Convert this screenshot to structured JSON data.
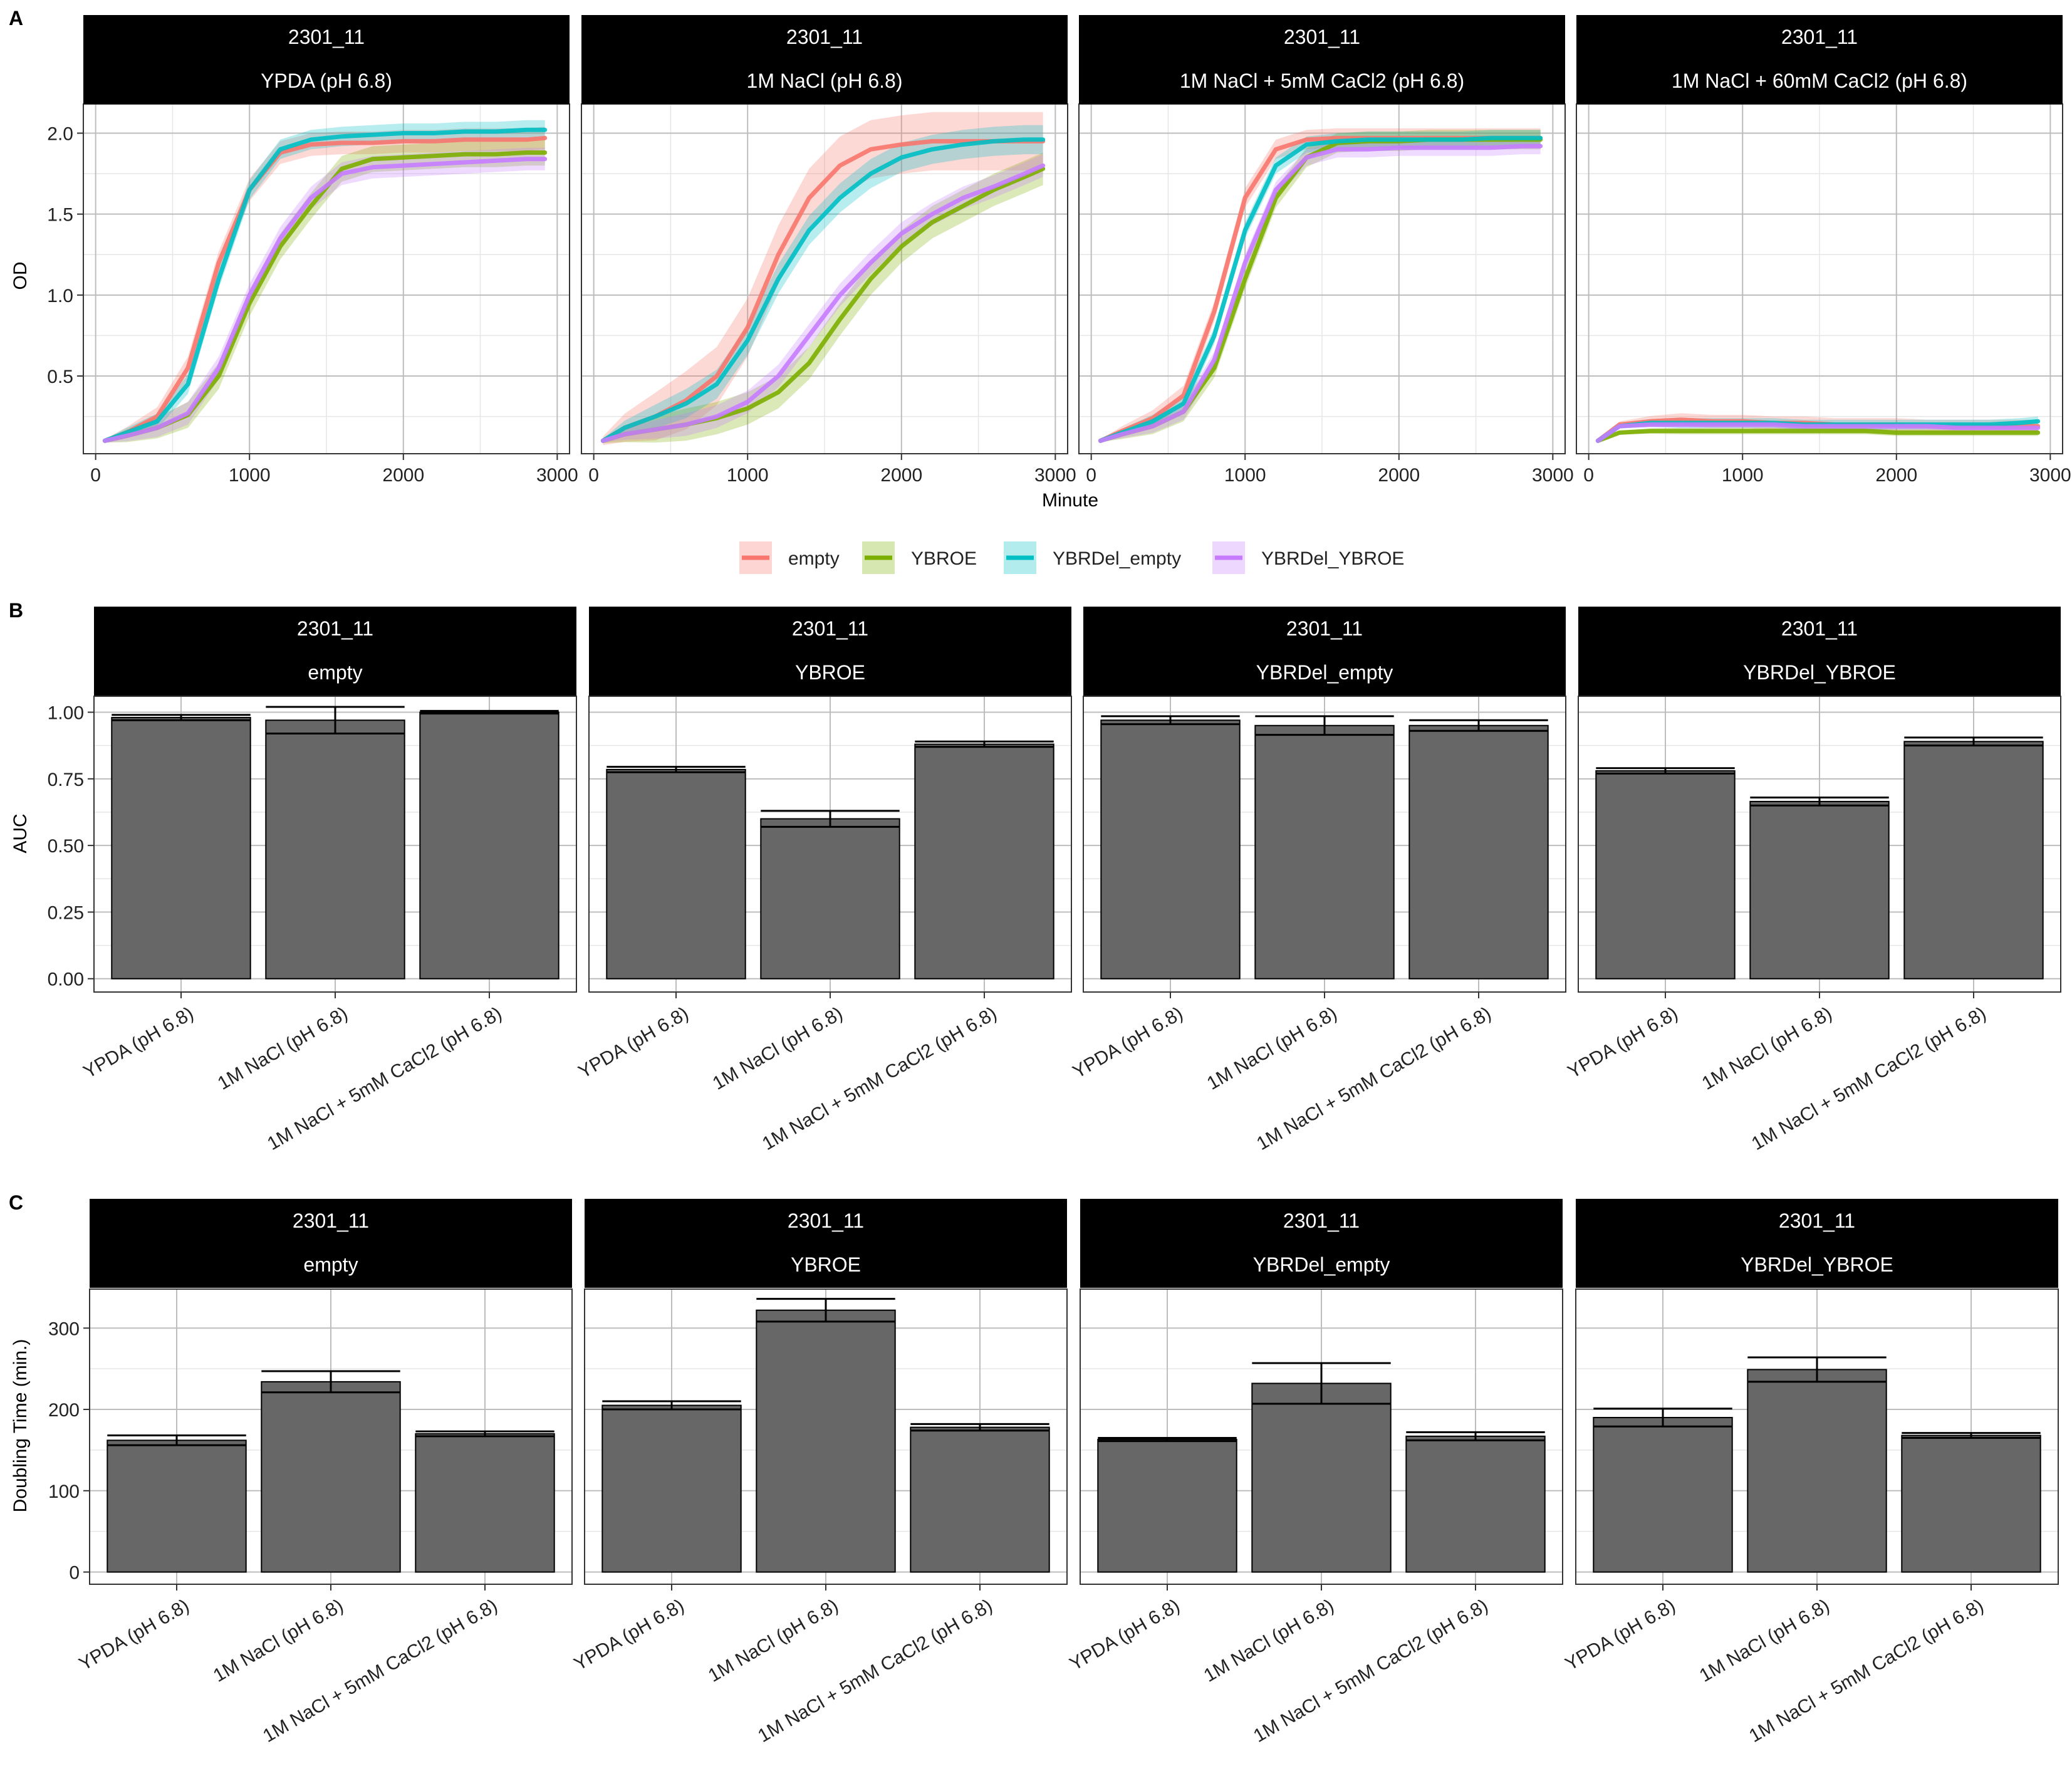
{
  "panel_labels": [
    "A",
    "B",
    "C"
  ],
  "colors": {
    "empty": "#F8766D",
    "YBROE": "#7CAE00",
    "YBRDel_empty": "#00BFC4",
    "YBRDel_YBROE": "#C77CFF",
    "bar_fill": "#676767",
    "strip_bg": "#000000",
    "strip_text": "#ffffff",
    "grid_major": "#bdbdbd",
    "grid_minor": "#e6e6e6"
  },
  "legend": {
    "position": "bottom-center",
    "items": [
      {
        "label": "empty",
        "color": "#F8766D"
      },
      {
        "label": "YBROE",
        "color": "#7CAE00"
      },
      {
        "label": "YBRDel_empty",
        "color": "#00BFC4"
      },
      {
        "label": "YBRDel_YBROE",
        "color": "#C77CFF"
      }
    ]
  },
  "chart_data": [
    {
      "panel": "A",
      "type": "line",
      "xlabel": "Minute",
      "ylabel": "OD",
      "xlim": [
        -80,
        3080
      ],
      "ylim": [
        0.02,
        2.18
      ],
      "x_ticks": [
        0,
        1000,
        2000,
        3000
      ],
      "y_ticks": [
        0.5,
        1.0,
        1.5,
        2.0
      ],
      "y_tick_labels": [
        "0.5",
        "1.0",
        "1.5",
        "2.0"
      ],
      "grid": true,
      "x": [
        60,
        200,
        400,
        600,
        800,
        1000,
        1200,
        1400,
        1600,
        1800,
        2000,
        2200,
        2400,
        2600,
        2800,
        2920
      ],
      "facets": [
        {
          "strip": [
            "2301_11",
            "YPDA (pH 6.8)"
          ],
          "series": [
            {
              "name": "empty",
              "values": [
                0.1,
                0.15,
                0.25,
                0.55,
                1.2,
                1.65,
                1.88,
                1.93,
                1.94,
                1.94,
                1.95,
                1.95,
                1.96,
                1.96,
                1.96,
                1.97
              ],
              "band": 0.07
            },
            {
              "name": "YBROE",
              "values": [
                0.1,
                0.13,
                0.18,
                0.26,
                0.5,
                0.95,
                1.3,
                1.55,
                1.78,
                1.84,
                1.85,
                1.86,
                1.87,
                1.87,
                1.88,
                1.88
              ],
              "band": 0.08
            },
            {
              "name": "YBRDel_empty",
              "values": [
                0.1,
                0.15,
                0.22,
                0.45,
                1.1,
                1.65,
                1.9,
                1.96,
                1.98,
                1.99,
                2.0,
                2.0,
                2.01,
                2.01,
                2.02,
                2.02
              ],
              "band": 0.06
            },
            {
              "name": "YBRDel_YBROE",
              "values": [
                0.1,
                0.13,
                0.18,
                0.27,
                0.55,
                1.0,
                1.35,
                1.6,
                1.75,
                1.79,
                1.8,
                1.81,
                1.82,
                1.83,
                1.84,
                1.84
              ],
              "band": 0.07
            }
          ]
        },
        {
          "strip": [
            "2301_11",
            "1M NaCl (pH 6.8)"
          ],
          "series": [
            {
              "name": "empty",
              "values": [
                0.1,
                0.18,
                0.25,
                0.35,
                0.5,
                0.8,
                1.25,
                1.6,
                1.8,
                1.9,
                1.93,
                1.95,
                1.95,
                1.95,
                1.95,
                1.95
              ],
              "band": 0.18
            },
            {
              "name": "YBROE",
              "values": [
                0.1,
                0.14,
                0.17,
                0.2,
                0.24,
                0.3,
                0.4,
                0.58,
                0.85,
                1.1,
                1.3,
                1.45,
                1.55,
                1.65,
                1.73,
                1.78
              ],
              "band": 0.1
            },
            {
              "name": "YBRDel_empty",
              "values": [
                0.1,
                0.18,
                0.25,
                0.33,
                0.45,
                0.72,
                1.1,
                1.4,
                1.6,
                1.75,
                1.85,
                1.9,
                1.93,
                1.95,
                1.96,
                1.96
              ],
              "band": 0.09
            },
            {
              "name": "YBRDel_YBROE",
              "values": [
                0.1,
                0.14,
                0.17,
                0.2,
                0.25,
                0.34,
                0.5,
                0.75,
                1.0,
                1.2,
                1.38,
                1.5,
                1.6,
                1.67,
                1.75,
                1.8
              ],
              "band": 0.07
            }
          ]
        },
        {
          "strip": [
            "2301_11",
            "1M NaCl + 5mM CaCl2 (pH 6.8)"
          ],
          "series": [
            {
              "name": "empty",
              "values": [
                0.1,
                0.16,
                0.24,
                0.38,
                0.9,
                1.6,
                1.9,
                1.96,
                1.97,
                1.97,
                1.97,
                1.97,
                1.97,
                1.97,
                1.97,
                1.97
              ],
              "band": 0.06
            },
            {
              "name": "YBROE",
              "values": [
                0.1,
                0.14,
                0.19,
                0.28,
                0.55,
                1.1,
                1.6,
                1.85,
                1.94,
                1.95,
                1.95,
                1.96,
                1.96,
                1.96,
                1.96,
                1.96
              ],
              "band": 0.06
            },
            {
              "name": "YBRDel_empty",
              "values": [
                0.1,
                0.15,
                0.22,
                0.33,
                0.75,
                1.4,
                1.8,
                1.93,
                1.95,
                1.96,
                1.96,
                1.96,
                1.96,
                1.97,
                1.97,
                1.97
              ],
              "band": 0.05
            },
            {
              "name": "YBRDel_YBROE",
              "values": [
                0.1,
                0.14,
                0.19,
                0.28,
                0.6,
                1.2,
                1.65,
                1.85,
                1.9,
                1.9,
                1.91,
                1.91,
                1.91,
                1.91,
                1.92,
                1.92
              ],
              "band": 0.05
            }
          ]
        },
        {
          "strip": [
            "2301_11",
            "1M NaCl + 60mM CaCl2 (pH 6.8)"
          ],
          "series": [
            {
              "name": "empty",
              "values": [
                0.1,
                0.2,
                0.22,
                0.23,
                0.22,
                0.22,
                0.21,
                0.21,
                0.2,
                0.2,
                0.2,
                0.19,
                0.19,
                0.19,
                0.19,
                0.19
              ],
              "band": 0.04
            },
            {
              "name": "YBROE",
              "values": [
                0.1,
                0.15,
                0.16,
                0.16,
                0.16,
                0.16,
                0.16,
                0.16,
                0.16,
                0.16,
                0.15,
                0.15,
                0.15,
                0.15,
                0.15,
                0.15
              ],
              "band": 0.02
            },
            {
              "name": "YBRDel_empty",
              "values": [
                0.1,
                0.19,
                0.21,
                0.21,
                0.21,
                0.21,
                0.21,
                0.2,
                0.2,
                0.2,
                0.2,
                0.2,
                0.2,
                0.2,
                0.21,
                0.22
              ],
              "band": 0.03
            },
            {
              "name": "YBRDel_YBROE",
              "values": [
                0.1,
                0.19,
                0.2,
                0.2,
                0.2,
                0.2,
                0.2,
                0.19,
                0.19,
                0.19,
                0.19,
                0.19,
                0.18,
                0.18,
                0.18,
                0.18
              ],
              "band": 0.02
            }
          ]
        }
      ]
    },
    {
      "panel": "B",
      "type": "bar",
      "xlabel": "",
      "ylabel": "AUC",
      "ylim": [
        -0.05,
        1.06
      ],
      "y_ticks": [
        0,
        0.25,
        0.5,
        0.75,
        1.0
      ],
      "y_tick_labels": [
        "0.00",
        "0.25",
        "0.50",
        "0.75",
        "1.00"
      ],
      "grid": true,
      "categories": [
        "YPDA (pH 6.8)",
        "1M NaCl (pH 6.8)",
        "1M NaCl + 5mM CaCl2 (pH 6.8)"
      ],
      "facets": [
        {
          "strip": [
            "2301_11",
            "empty"
          ],
          "values": [
            0.98,
            0.97,
            1.0
          ],
          "errors": [
            0.01,
            0.05,
            0.005
          ]
        },
        {
          "strip": [
            "2301_11",
            "YBROE"
          ],
          "values": [
            0.785,
            0.6,
            0.88
          ],
          "errors": [
            0.01,
            0.03,
            0.01
          ]
        },
        {
          "strip": [
            "2301_11",
            "YBRDel_empty"
          ],
          "values": [
            0.97,
            0.95,
            0.95
          ],
          "errors": [
            0.015,
            0.035,
            0.02
          ]
        },
        {
          "strip": [
            "2301_11",
            "YBRDel_YBROE"
          ],
          "values": [
            0.78,
            0.665,
            0.89
          ],
          "errors": [
            0.01,
            0.015,
            0.015
          ]
        }
      ]
    },
    {
      "panel": "C",
      "type": "bar",
      "xlabel": "",
      "ylabel": "Doubling Time (min.)",
      "ylim": [
        -15,
        348
      ],
      "y_ticks": [
        0,
        100,
        200,
        300
      ],
      "y_tick_labels": [
        "0",
        "100",
        "200",
        "300"
      ],
      "grid": true,
      "categories": [
        "YPDA (pH 6.8)",
        "1M NaCl (pH 6.8)",
        "1M NaCl + 5mM CaCl2 (pH 6.8)"
      ],
      "facets": [
        {
          "strip": [
            "2301_11",
            "empty"
          ],
          "values": [
            162,
            234,
            170
          ],
          "errors": [
            6,
            13,
            3
          ]
        },
        {
          "strip": [
            "2301_11",
            "YBROE"
          ],
          "values": [
            205,
            322,
            178
          ],
          "errors": [
            5,
            14,
            4
          ]
        },
        {
          "strip": [
            "2301_11",
            "YBRDel_empty"
          ],
          "values": [
            163,
            232,
            167
          ],
          "errors": [
            2,
            25,
            5
          ]
        },
        {
          "strip": [
            "2301_11",
            "YBRDel_YBROE"
          ],
          "values": [
            190,
            249,
            168
          ],
          "errors": [
            11,
            15,
            3
          ]
        }
      ]
    }
  ]
}
